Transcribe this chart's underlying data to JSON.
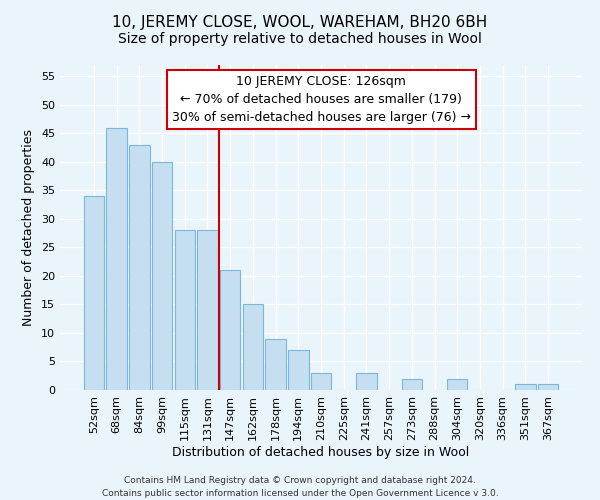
{
  "title": "10, JEREMY CLOSE, WOOL, WAREHAM, BH20 6BH",
  "subtitle": "Size of property relative to detached houses in Wool",
  "xlabel": "Distribution of detached houses by size in Wool",
  "ylabel": "Number of detached properties",
  "bar_labels": [
    "52sqm",
    "68sqm",
    "84sqm",
    "99sqm",
    "115sqm",
    "131sqm",
    "147sqm",
    "162sqm",
    "178sqm",
    "194sqm",
    "210sqm",
    "225sqm",
    "241sqm",
    "257sqm",
    "273sqm",
    "288sqm",
    "304sqm",
    "320sqm",
    "336sqm",
    "351sqm",
    "367sqm"
  ],
  "bar_values": [
    34,
    46,
    43,
    40,
    28,
    28,
    21,
    15,
    9,
    7,
    3,
    0,
    3,
    0,
    2,
    0,
    2,
    0,
    0,
    1,
    1
  ],
  "bar_color": "#c5dff0",
  "bar_edge_color": "#7ab8d9",
  "vline_x": 5.5,
  "vline_color": "#cc0000",
  "annotation_title": "10 JEREMY CLOSE: 126sqm",
  "annotation_line1": "← 70% of detached houses are smaller (179)",
  "annotation_line2": "30% of semi-detached houses are larger (76) →",
  "annotation_box_color": "#ffffff",
  "annotation_box_edge": "#cc0000",
  "ylim": [
    0,
    57
  ],
  "yticks": [
    0,
    5,
    10,
    15,
    20,
    25,
    30,
    35,
    40,
    45,
    50,
    55
  ],
  "footer_line1": "Contains HM Land Registry data © Crown copyright and database right 2024.",
  "footer_line2": "Contains public sector information licensed under the Open Government Licence v 3.0.",
  "background_color": "#eaf4fb",
  "grid_color": "#ffffff",
  "title_fontsize": 11,
  "subtitle_fontsize": 10,
  "axis_label_fontsize": 9,
  "tick_fontsize": 8,
  "annotation_fontsize": 9,
  "footer_fontsize": 6.5
}
